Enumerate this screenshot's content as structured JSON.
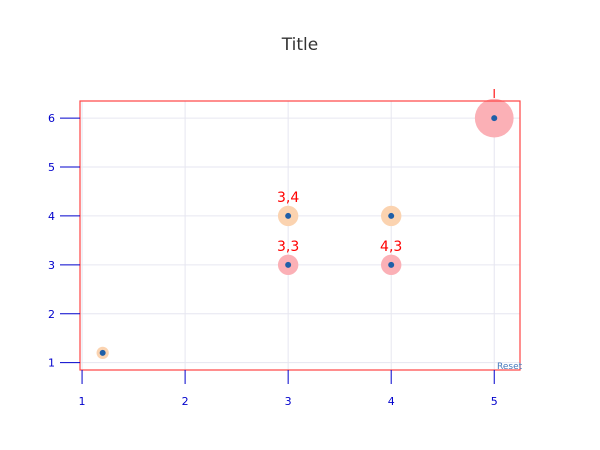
{
  "chart_data": {
    "type": "scatter",
    "title": "Title",
    "xlabel": "",
    "ylabel": "",
    "xlim": [
      0.98,
      5.25
    ],
    "ylim": [
      0.85,
      6.35
    ],
    "x_ticks": [
      "1",
      "2",
      "3",
      "4",
      "5"
    ],
    "y_ticks": [
      "1",
      "2",
      "3",
      "4",
      "5",
      "6"
    ],
    "grid": true,
    "points": [
      {
        "x": 1.2,
        "y": 1.2,
        "size": 0.12,
        "color": "#fbd3b0",
        "label": ""
      },
      {
        "x": 3,
        "y": 3,
        "size": 0.2,
        "color": "#fbb0b6",
        "label": "3,3"
      },
      {
        "x": 3,
        "y": 4,
        "size": 0.2,
        "color": "#fbd3b0",
        "label": "3,4"
      },
      {
        "x": 4,
        "y": 3,
        "size": 0.2,
        "color": "#fbb0b6",
        "label": "4,3"
      },
      {
        "x": 4,
        "y": 4,
        "size": 0.2,
        "color": "#fbd3b0",
        "label": ""
      },
      {
        "x": 5,
        "y": 6,
        "size": 0.38,
        "color": "#fbb0b6",
        "label": ""
      }
    ],
    "marker_color": "#1f5fa8",
    "frame_color": "#ff4444",
    "axis_color": "#0000cc",
    "grid_color": "#e6e6f0",
    "label_color": "#ff0000",
    "reset_label": "Reset"
  }
}
